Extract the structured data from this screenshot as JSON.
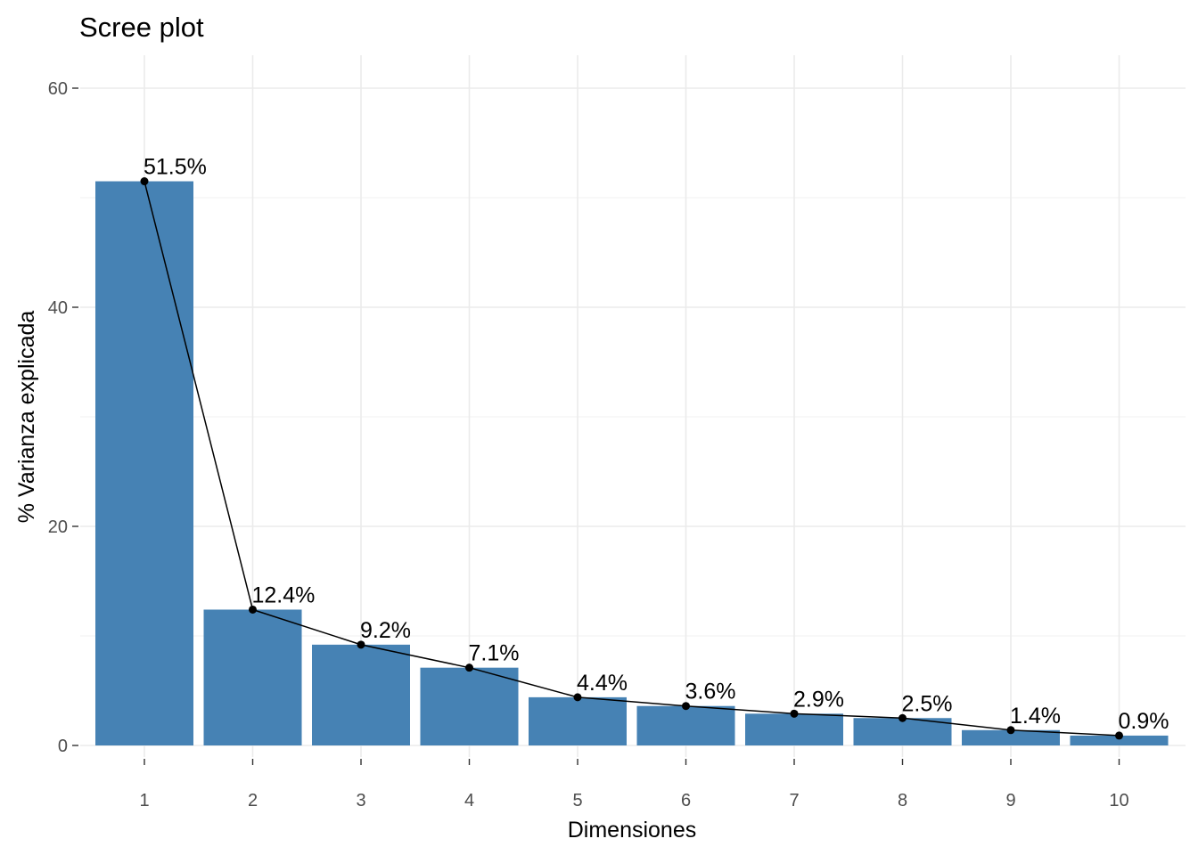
{
  "chart_data": {
    "type": "bar",
    "title": "Scree plot",
    "xlabel": "Dimensiones",
    "ylabel": "% Varianza explicada",
    "categories": [
      "1",
      "2",
      "3",
      "4",
      "5",
      "6",
      "7",
      "8",
      "9",
      "10"
    ],
    "values": [
      51.5,
      12.4,
      9.2,
      7.1,
      4.4,
      3.6,
      2.9,
      2.5,
      1.4,
      0.9
    ],
    "data_labels": [
      "51.5%",
      "12.4%",
      "9.2%",
      "7.1%",
      "4.4%",
      "3.6%",
      "2.9%",
      "2.5%",
      "1.4%",
      "0.9%"
    ],
    "yticks": [
      0,
      20,
      40,
      60
    ],
    "ylim": [
      0,
      60
    ],
    "grid": true,
    "legend": "none",
    "overlay": "line-with-points",
    "bar_color": "#4682b4",
    "line_color": "#000000"
  }
}
